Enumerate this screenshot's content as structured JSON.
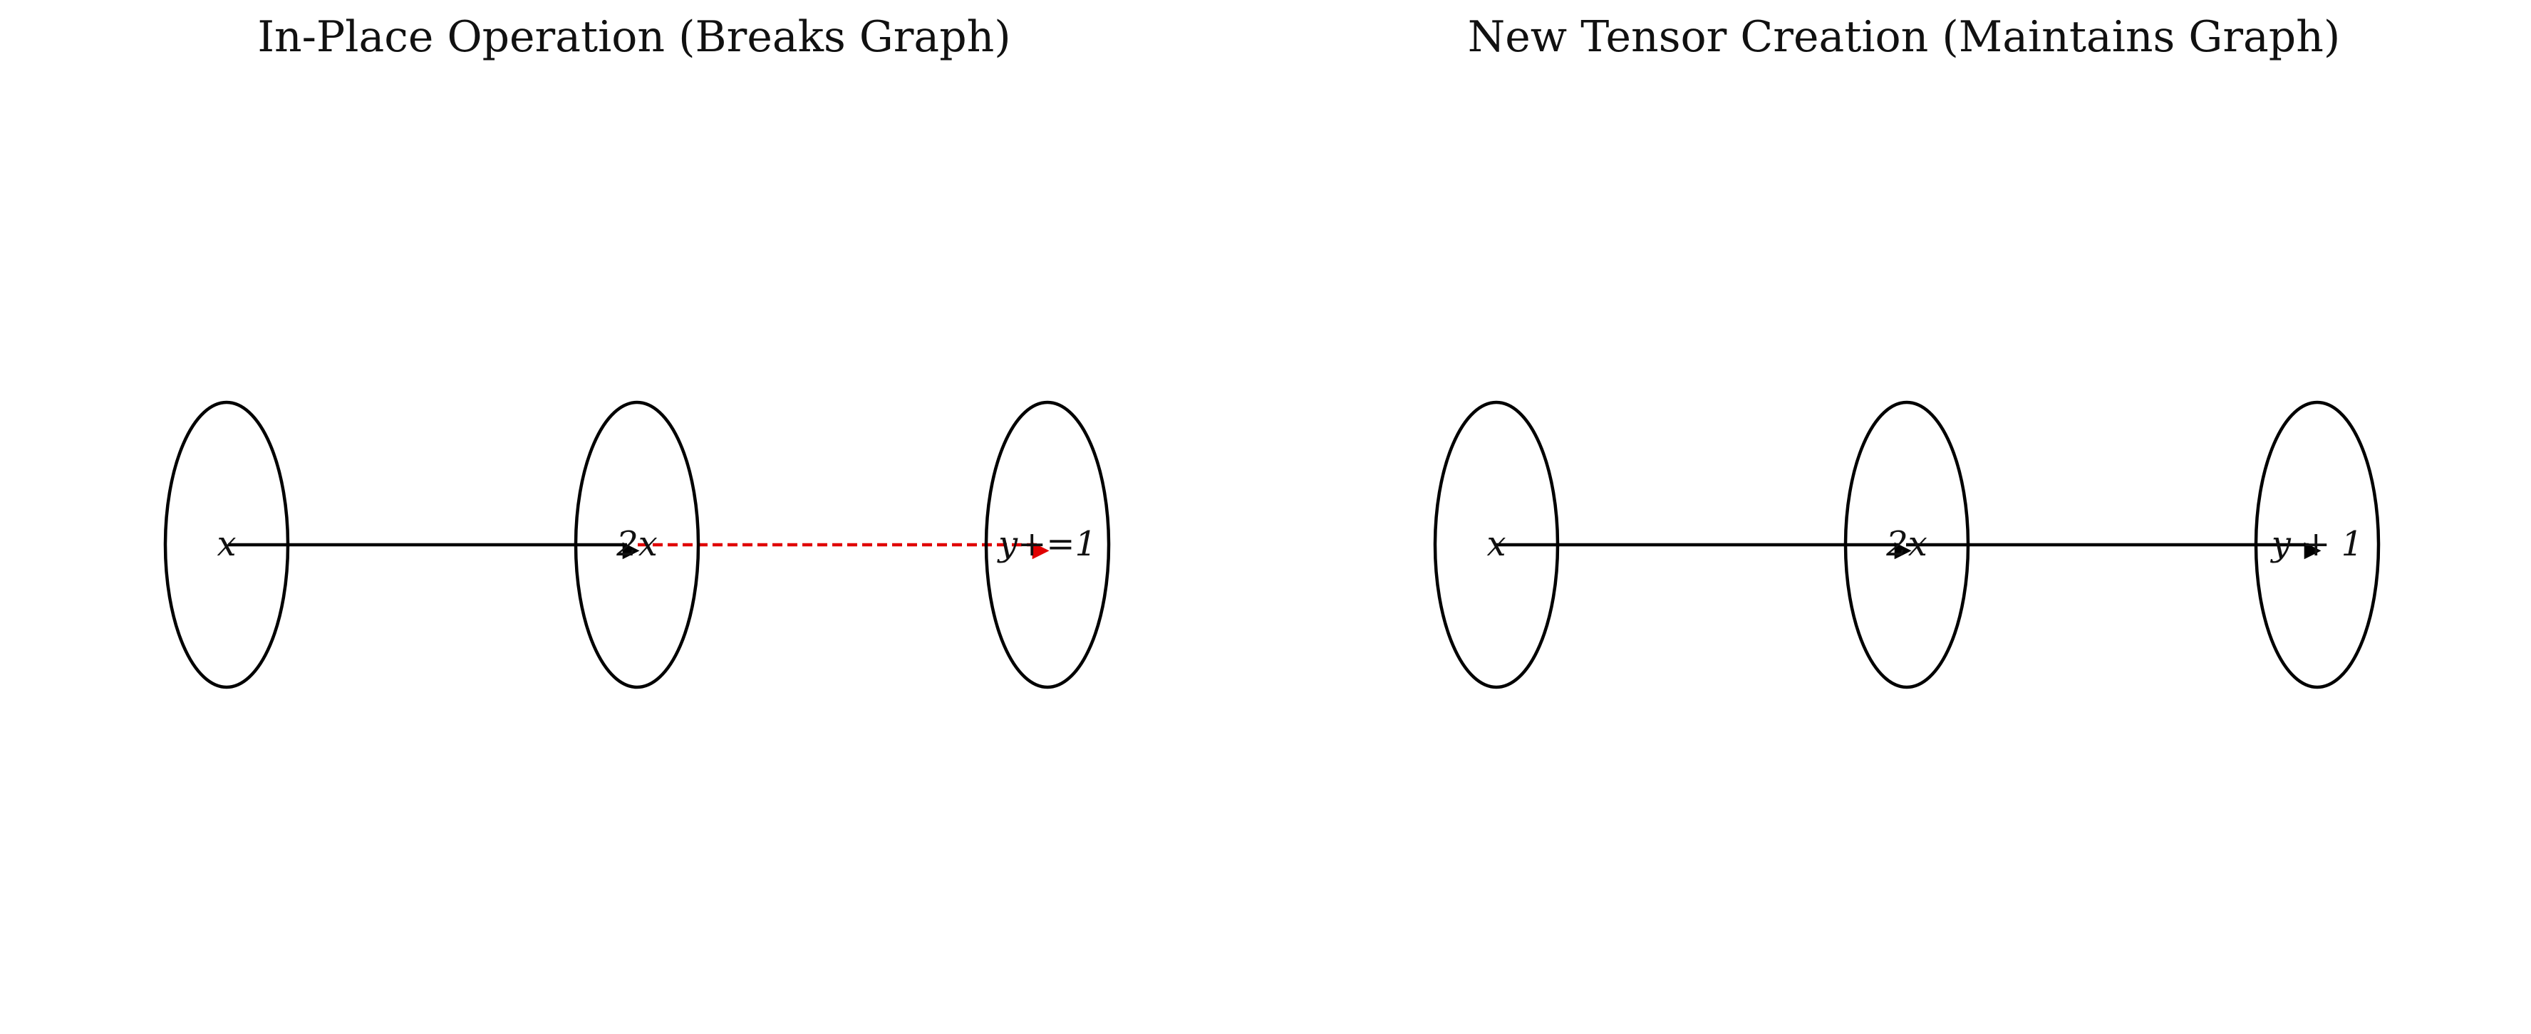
{
  "panels": [
    {
      "title": "In-Place Operation (Breaks Graph)",
      "nodes": [
        {
          "label": "x",
          "math": true
        },
        {
          "label": "2x",
          "math": true
        },
        {
          "label": "y+=1",
          "math": true
        }
      ],
      "edges": [
        {
          "from": 0,
          "to": 1,
          "style": "solid",
          "color": "#000000"
        },
        {
          "from": 1,
          "to": 2,
          "style": "dashed",
          "color": "#e00000"
        }
      ]
    },
    {
      "title": "New Tensor Creation (Maintains Graph)",
      "nodes": [
        {
          "label": "x",
          "math": true
        },
        {
          "label": "2x",
          "math": true
        },
        {
          "label": "y + 1",
          "math": true
        }
      ],
      "edges": [
        {
          "from": 0,
          "to": 1,
          "style": "solid",
          "color": "#000000"
        },
        {
          "from": 1,
          "to": 2,
          "style": "solid",
          "color": "#000000"
        }
      ]
    }
  ]
}
